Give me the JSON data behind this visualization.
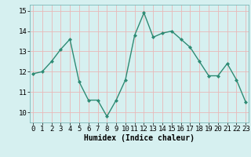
{
  "x": [
    0,
    1,
    2,
    3,
    4,
    5,
    6,
    7,
    8,
    9,
    10,
    11,
    12,
    13,
    14,
    15,
    16,
    17,
    18,
    19,
    20,
    21,
    22,
    23
  ],
  "y": [
    11.9,
    12.0,
    12.5,
    13.1,
    13.6,
    11.5,
    10.6,
    10.6,
    9.8,
    10.6,
    11.6,
    13.8,
    14.9,
    13.7,
    13.9,
    14.0,
    13.6,
    13.2,
    12.5,
    11.8,
    11.8,
    12.4,
    11.6,
    10.5
  ],
  "line_color": "#2e8b74",
  "marker": "D",
  "marker_size": 2.0,
  "linewidth": 1.0,
  "bg_color": "#d6f0f0",
  "grid_color": "#c0d8d8",
  "grid_red_color": "#e8b8b8",
  "xlabel": "Humidex (Indice chaleur)",
  "xlabel_fontsize": 7,
  "tick_fontsize": 6.5,
  "ylim": [
    9.5,
    15.3
  ],
  "yticks": [
    10,
    11,
    12,
    13,
    14,
    15
  ],
  "xticks": [
    0,
    1,
    2,
    3,
    4,
    5,
    6,
    7,
    8,
    9,
    10,
    11,
    12,
    13,
    14,
    15,
    16,
    17,
    18,
    19,
    20,
    21,
    22,
    23
  ],
  "xlim": [
    -0.3,
    23.3
  ]
}
